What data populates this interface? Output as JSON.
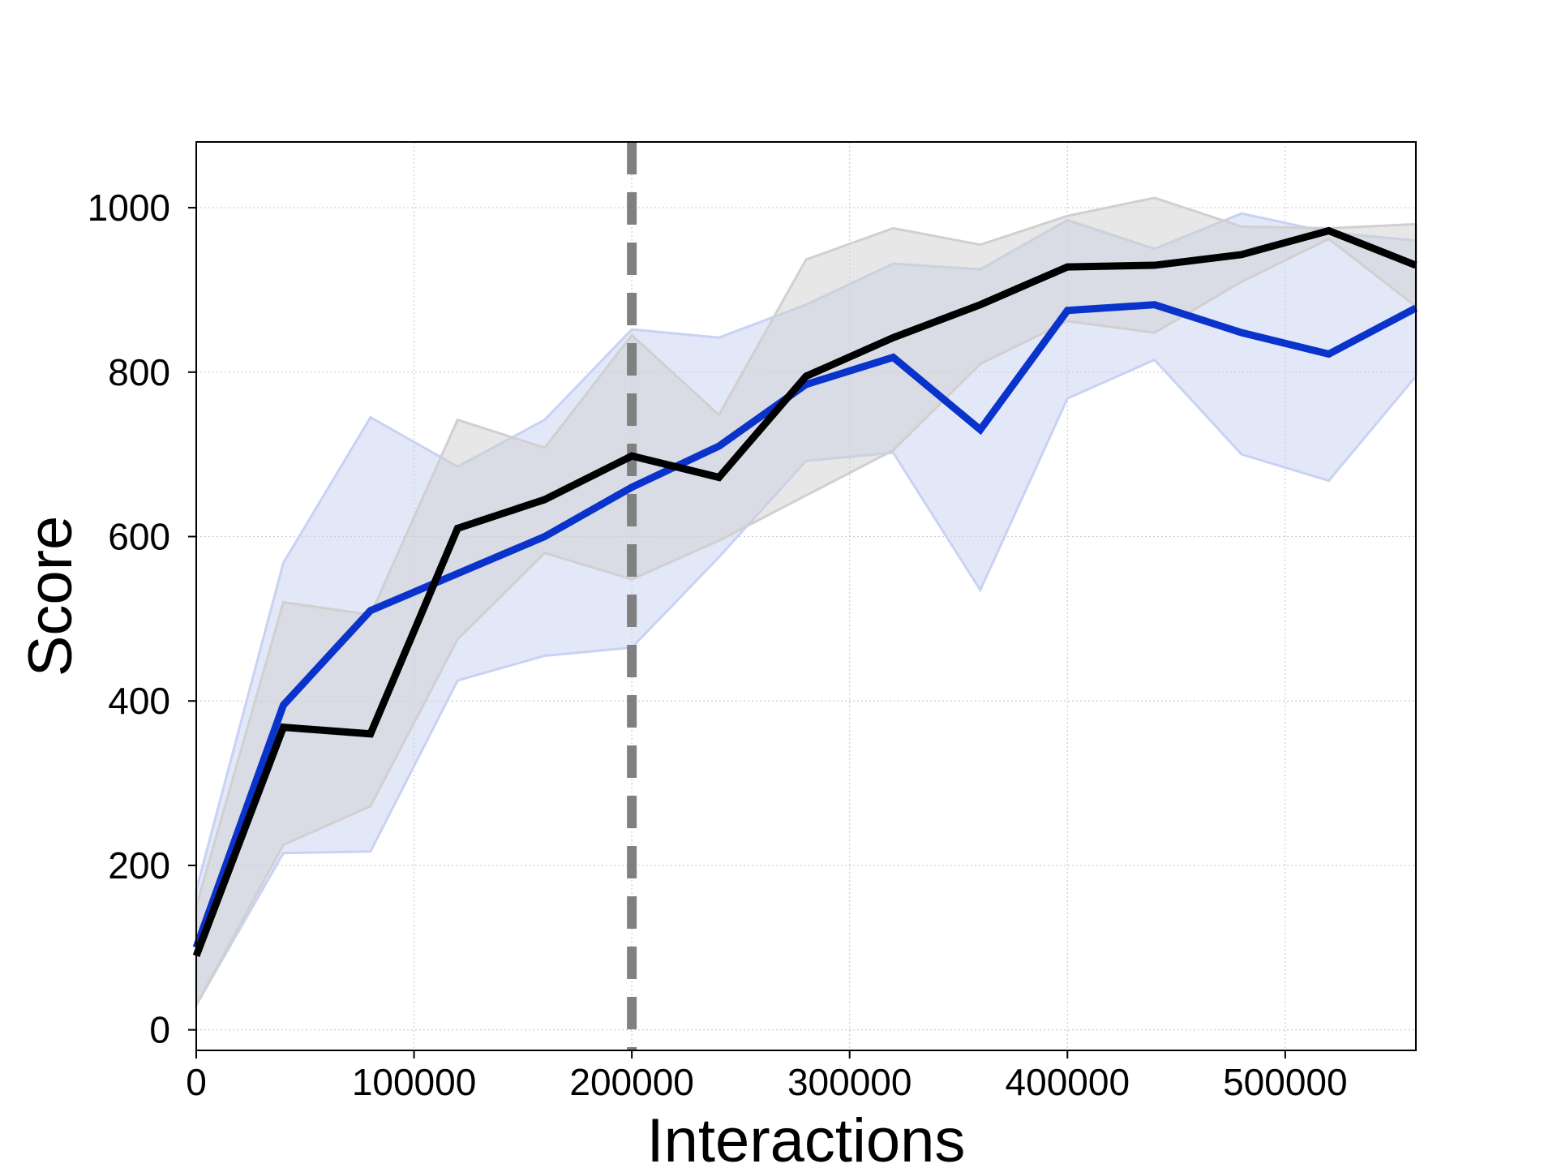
{
  "chart_data": {
    "type": "line",
    "title": "",
    "xlabel": "Interactions",
    "ylabel": "Score",
    "xlim": [
      0,
      560000
    ],
    "ylim": [
      -25,
      1080
    ],
    "xticks": [
      0,
      100000,
      200000,
      300000,
      400000,
      500000
    ],
    "yticks": [
      0,
      200,
      400,
      600,
      800,
      1000
    ],
    "xtick_labels": [
      "0",
      "100000",
      "200000",
      "300000",
      "400000",
      "500000"
    ],
    "ytick_labels": [
      "0",
      "200",
      "400",
      "600",
      "800",
      "1000"
    ],
    "grid": true,
    "legend": "none",
    "vline": {
      "x": 200000,
      "style": "dashed",
      "color": "#808080"
    },
    "x": [
      0,
      40000,
      80000,
      120000,
      160000,
      200000,
      240000,
      280000,
      320000,
      360000,
      400000,
      440000,
      480000,
      520000,
      560000
    ],
    "series": [
      {
        "color": "#0a33cc",
        "band_color": "#c8d2f3",
        "values": [
          100,
          395,
          510,
          555,
          600,
          660,
          710,
          785,
          818,
          730,
          875,
          882,
          848,
          822,
          878
        ],
        "upper": [
          170,
          568,
          745,
          685,
          742,
          852,
          842,
          882,
          932,
          925,
          985,
          950,
          993,
          970,
          960
        ],
        "lower": [
          30,
          215,
          217,
          425,
          455,
          465,
          575,
          692,
          702,
          535,
          768,
          815,
          700,
          668,
          795
        ]
      },
      {
        "color": "#000000",
        "band_color": "#d0d0d0",
        "values": [
          90,
          368,
          360,
          610,
          645,
          698,
          672,
          795,
          842,
          882,
          928,
          930,
          943,
          972,
          930
        ],
        "upper": [
          150,
          520,
          505,
          742,
          708,
          845,
          748,
          937,
          975,
          955,
          990,
          1012,
          977,
          975,
          980
        ],
        "lower": [
          30,
          225,
          272,
          475,
          580,
          548,
          595,
          650,
          705,
          810,
          862,
          848,
          910,
          962,
          880
        ]
      }
    ]
  }
}
